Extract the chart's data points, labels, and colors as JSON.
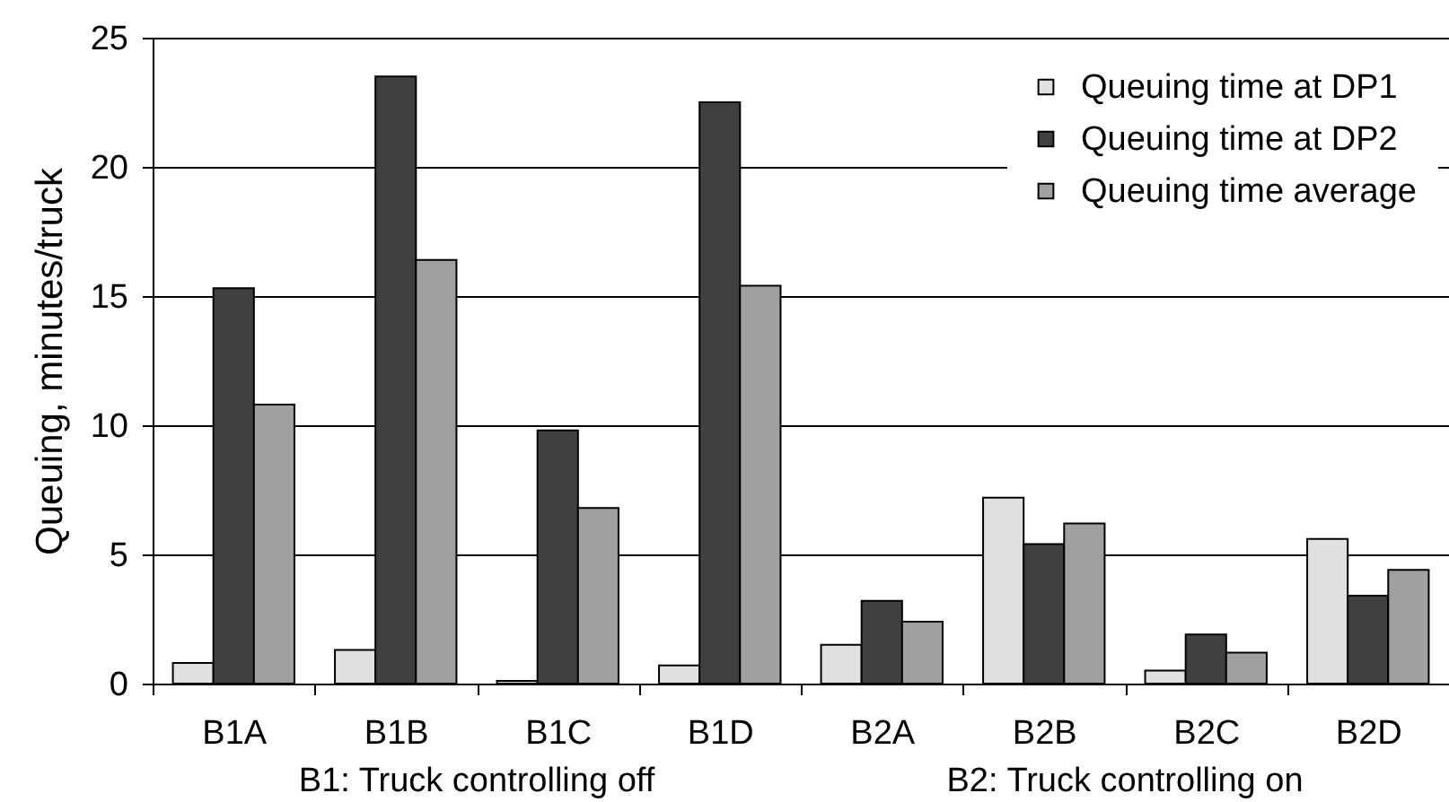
{
  "chart_data": {
    "type": "bar",
    "ylabel": "Queuing, minutes/truck",
    "categories": [
      "B1A",
      "B1B",
      "B1C",
      "B1D",
      "B2A",
      "B2B",
      "B2C",
      "B2D"
    ],
    "series": [
      {
        "name": "Queuing time at DP1",
        "color": "#e0e0e0",
        "values": [
          0.8,
          1.3,
          0.1,
          0.7,
          1.5,
          7.2,
          0.5,
          5.6
        ]
      },
      {
        "name": "Queuing time at DP2",
        "color": "#404040",
        "values": [
          15.3,
          23.5,
          9.8,
          22.5,
          3.2,
          5.4,
          1.9,
          3.4
        ]
      },
      {
        "name": "Queuing time average",
        "color": "#a0a0a0",
        "values": [
          10.8,
          16.4,
          6.8,
          15.4,
          2.4,
          6.2,
          1.2,
          4.4
        ]
      }
    ],
    "ylim": [
      0,
      25
    ],
    "yticks": [
      0,
      5,
      10,
      15,
      20,
      25
    ],
    "grid": "y",
    "legend": "top right",
    "annotations": [
      "B1: Truck controlling off",
      "B2: Truck controlling on"
    ]
  }
}
